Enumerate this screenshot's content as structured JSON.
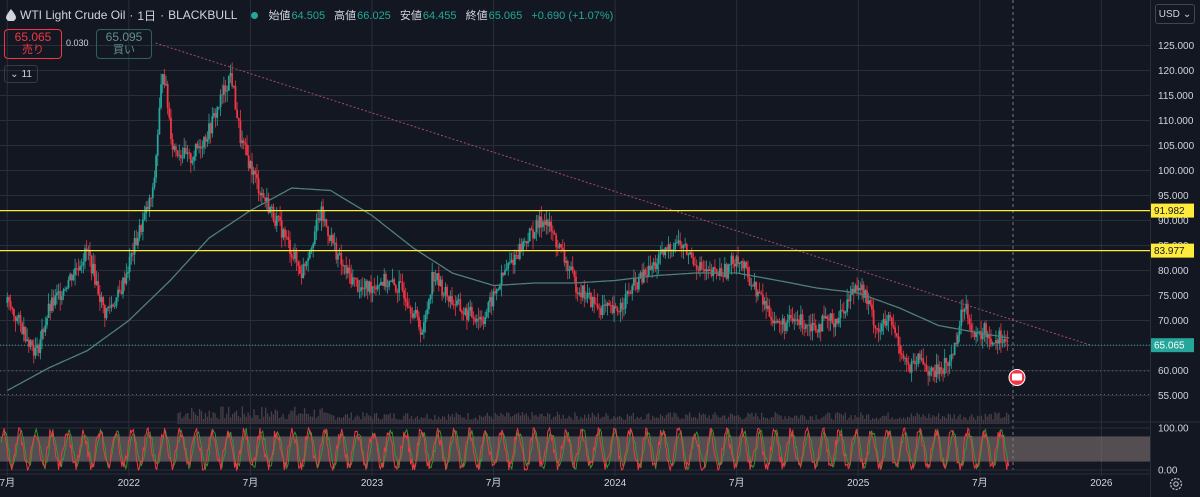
{
  "header": {
    "symbol": "WTI Light Crude Oil",
    "interval": "1日",
    "broker": "BLACKBULL",
    "open_label": "始値",
    "open": "64.505",
    "high_label": "高値",
    "high": "66.025",
    "low_label": "安値",
    "low": "64.455",
    "close_label": "終値",
    "close": "65.065",
    "change": "+0.690 (+1.07%)"
  },
  "trade": {
    "sell_price": "65.065",
    "sell_label": "売り",
    "spread": "0.030",
    "buy_price": "65.095",
    "buy_label": "買い"
  },
  "indicators_toggle": "11",
  "currency": "USD",
  "colors": {
    "background": "#131722",
    "grid": "#2a2e39",
    "text": "#d1d4dc",
    "up": "#26a69a",
    "down": "#f23645",
    "ma": "#4f7f7a",
    "hline": "#ffeb3b",
    "trend": "#a44a6f",
    "osc_k": "#f23645",
    "osc_d": "#2ca02c",
    "osc_band": "#8a7b7b"
  },
  "chart_data": [
    {
      "type": "candlestick",
      "title": "",
      "price_axis": {
        "ylim": [
          52.5,
          128.5
        ],
        "ticks": [
          "55.000",
          "60.000",
          "65.000",
          "70.000",
          "75.000",
          "80.000",
          "85.000",
          "90.000",
          "95.000",
          "100.000",
          "105.000",
          "110.000",
          "115.000",
          "120.000",
          "125.000"
        ]
      },
      "time_axis": {
        "labels": [
          "7月",
          "2022",
          "7月",
          "2023",
          "7月",
          "2024",
          "7月",
          "2025",
          "7月",
          "2026"
        ],
        "ticks": [
          2021.5,
          2022.0,
          2022.5,
          2023.0,
          2023.5,
          2024.0,
          2024.5,
          2025.0,
          2025.5,
          2026.0
        ],
        "xlim": [
          2021.47,
          2026.2
        ]
      },
      "grid": true,
      "price_series": {
        "x": [
          2021.5,
          2021.58,
          2021.62,
          2021.67,
          2021.75,
          2021.83,
          2021.9,
          2021.96,
          2022.03,
          2022.1,
          2022.14,
          2022.18,
          2022.25,
          2022.33,
          2022.42,
          2022.46,
          2022.54,
          2022.63,
          2022.71,
          2022.79,
          2022.88,
          2022.96,
          2023.04,
          2023.13,
          2023.21,
          2023.25,
          2023.3,
          2023.38,
          2023.46,
          2023.55,
          2023.63,
          2023.71,
          2023.77,
          2023.84,
          2023.92,
          2024.0,
          2024.08,
          2024.17,
          2024.25,
          2024.29,
          2024.38,
          2024.46,
          2024.5,
          2024.58,
          2024.67,
          2024.75,
          2024.83,
          2024.92,
          2025.0,
          2025.04,
          2025.08,
          2025.13,
          2025.21,
          2025.26,
          2025.3,
          2025.38,
          2025.44,
          2025.48,
          2025.52,
          2025.55,
          2025.59,
          2025.62
        ],
        "close": [
          73.5,
          67.0,
          63.5,
          72.0,
          78.0,
          84.0,
          71.5,
          75.0,
          86.0,
          95.5,
          121.0,
          105.0,
          102.0,
          108.0,
          119.5,
          106.0,
          96.0,
          88.0,
          79.5,
          91.5,
          80.5,
          76.0,
          78.0,
          76.0,
          67.5,
          79.5,
          75.5,
          71.5,
          70.5,
          80.0,
          86.0,
          90.5,
          84.5,
          77.0,
          73.0,
          71.5,
          77.0,
          81.5,
          86.0,
          84.0,
          79.0,
          80.0,
          83.0,
          76.0,
          69.0,
          70.0,
          69.0,
          70.5,
          78.0,
          73.5,
          68.0,
          70.0,
          60.0,
          62.5,
          59.0,
          62.0,
          74.0,
          66.0,
          68.0,
          66.0,
          67.0,
          65.065
        ]
      },
      "moving_average": {
        "x": [
          2021.5,
          2021.67,
          2021.83,
          2022.0,
          2022.17,
          2022.33,
          2022.5,
          2022.67,
          2022.83,
          2023.0,
          2023.17,
          2023.33,
          2023.5,
          2023.67,
          2023.83,
          2024.0,
          2024.17,
          2024.33,
          2024.5,
          2024.67,
          2024.83,
          2025.0,
          2025.17,
          2025.33,
          2025.5,
          2025.62
        ],
        "values": [
          56.0,
          60.5,
          64.0,
          70.0,
          78.0,
          86.5,
          92.0,
          96.5,
          96.0,
          91.0,
          84.5,
          79.5,
          77.0,
          77.5,
          77.5,
          78.0,
          79.0,
          79.5,
          79.5,
          78.0,
          76.5,
          75.5,
          72.5,
          69.0,
          67.5,
          66.5
        ]
      },
      "horizontal_lines": [
        {
          "value": 91.982,
          "label": "91.982"
        },
        {
          "value": 83.977,
          "label": "83.977"
        }
      ],
      "trendline": {
        "from": [
          2022.11,
          125.5
        ],
        "to": [
          2025.96,
          65.0
        ]
      },
      "last_price": {
        "value": 65.065,
        "label": "65.065"
      },
      "dotted_levels": [
        59.9,
        55.2
      ]
    },
    {
      "type": "line",
      "title": "",
      "ylim": [
        0,
        100
      ],
      "ticks": [
        "0.00",
        "100.00"
      ],
      "bands": [
        20,
        80
      ]
    }
  ]
}
